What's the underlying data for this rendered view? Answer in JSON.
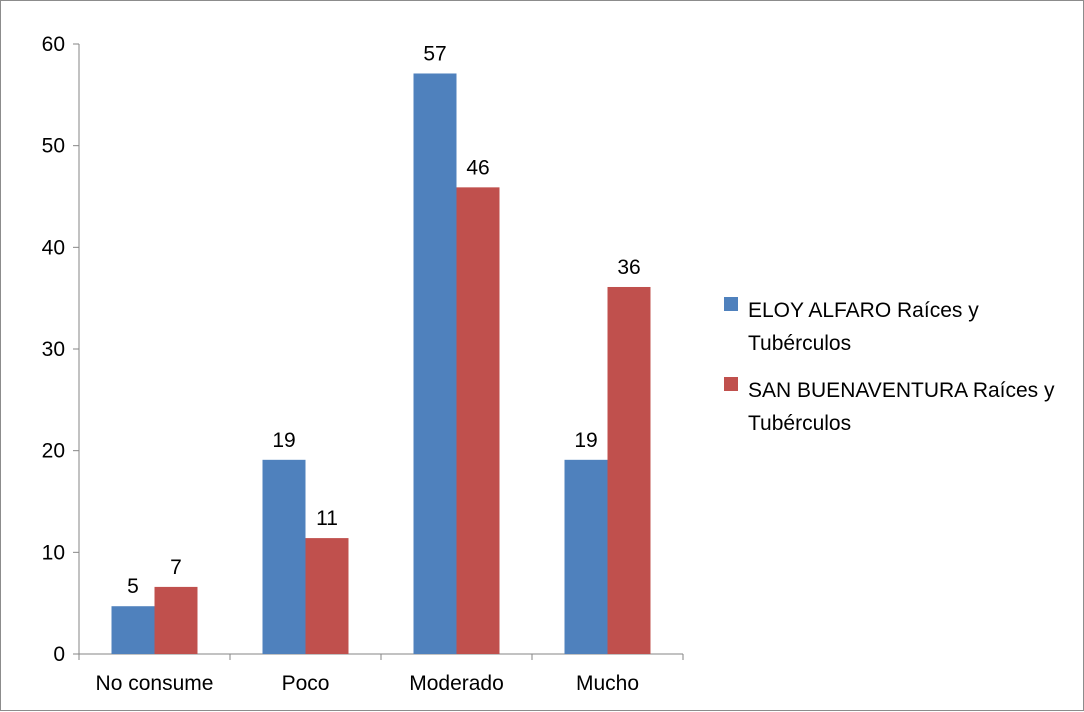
{
  "chart_data": {
    "type": "bar",
    "categories": [
      "No consume",
      "Poco",
      "Moderado",
      "Mucho"
    ],
    "series": [
      {
        "name": "ELOY ALFARO Raíces y Tubérculos",
        "values": [
          4.7,
          19.1,
          57.1,
          19.1
        ],
        "labels": [
          "5",
          "19",
          "57",
          "19"
        ],
        "color": "#4f81bd"
      },
      {
        "name": "SAN BUENAVENTURA Raíces y Tubérculos",
        "values": [
          6.6,
          11.4,
          45.9,
          36.1
        ],
        "labels": [
          "7",
          "11",
          "46",
          "36"
        ],
        "color": "#c0504d"
      }
    ],
    "ylim": [
      0,
      60
    ],
    "yticks": [
      0,
      10,
      20,
      30,
      40,
      50,
      60
    ],
    "legend_lines": [
      [
        "ELOY ALFARO Raíces y",
        "Tubérculos"
      ],
      [
        "SAN BUENAVENTURA Raíces y",
        "Tubérculos"
      ]
    ],
    "legend_position": "right",
    "grid": false
  }
}
